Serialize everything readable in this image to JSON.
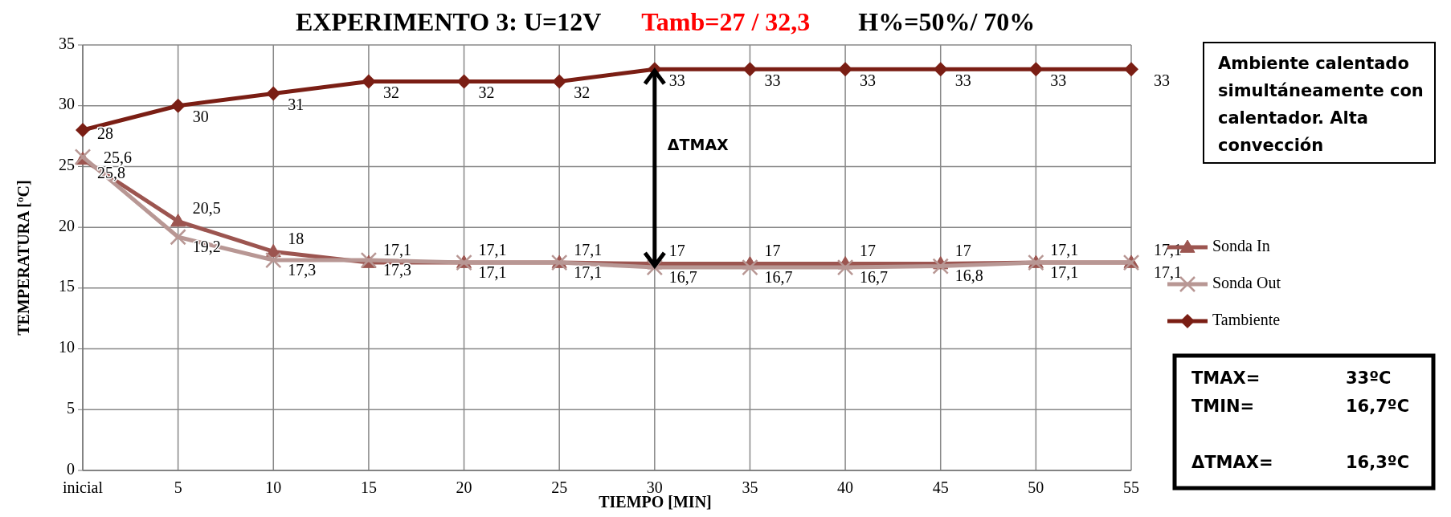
{
  "chart_data": {
    "type": "line",
    "title": "EXPERIMENTO 3:  U=12V",
    "xlabel": "TIEMPO [MIN]",
    "ylabel": "TEMPERATURA [ºC]",
    "categories": [
      "inicial",
      "5",
      "10",
      "15",
      "20",
      "25",
      "30",
      "35",
      "40",
      "45",
      "50",
      "55"
    ],
    "series": [
      {
        "name": "Sonda In",
        "color": "#9c5550",
        "marker": "triangle",
        "values": [
          25.6,
          20.5,
          18,
          17.1,
          17.1,
          17.1,
          17,
          17,
          17,
          17,
          17.1,
          17.1
        ],
        "value_labels": [
          "25,6",
          "20,5",
          "18",
          "17,1",
          "17,1",
          "17,1",
          "17",
          "17",
          "17",
          "17",
          "17,1",
          "17,1"
        ]
      },
      {
        "name": "Sonda Out",
        "color": "#b89794",
        "marker": "cross",
        "values": [
          25.8,
          19.2,
          17.3,
          17.3,
          17.1,
          17.1,
          16.7,
          16.7,
          16.7,
          16.8,
          17.1,
          17.1
        ],
        "value_labels": [
          "25,8",
          "19,2",
          "17,3",
          "17,3",
          "17,1",
          "17,1",
          "16,7",
          "16,7",
          "16,7",
          "16,8",
          "17,1",
          "17,1"
        ]
      },
      {
        "name": "Tambiente",
        "color": "#7a1e14",
        "marker": "diamond",
        "values": [
          28,
          30,
          31,
          32,
          32,
          32,
          33,
          33,
          33,
          33,
          33,
          33
        ],
        "value_labels": [
          "28",
          "30",
          "31",
          "32",
          "32",
          "32",
          "33",
          "33",
          "33",
          "33",
          "33",
          "33"
        ]
      }
    ],
    "ylim": [
      0,
      35
    ],
    "yticks": [
      0,
      5,
      10,
      15,
      20,
      25,
      30,
      35
    ],
    "grid": true,
    "legend": "right",
    "annotations": [
      "Tamb=27 / 32,3",
      "H%=50%/ 70%",
      "Ambiente calentado simultáneamente con calentador. Alta convección",
      "TMAX=",
      "33ºC",
      "TMIN=",
      "16,7ºC",
      "ΔTMAX=",
      "16,3ºC",
      "ΔTMAX"
    ]
  }
}
